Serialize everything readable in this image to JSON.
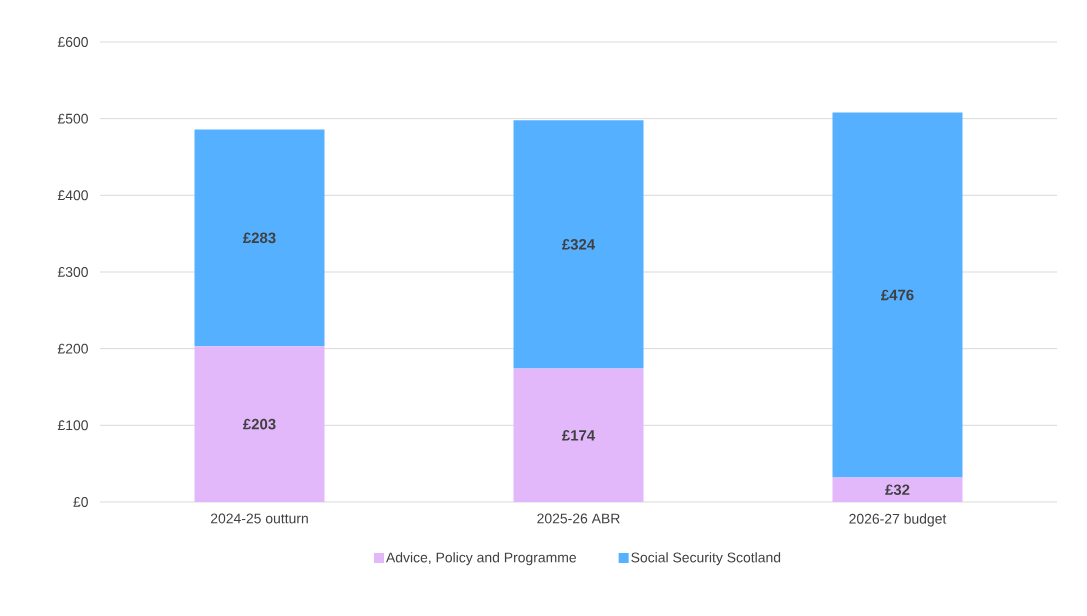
{
  "chart_data": {
    "type": "bar",
    "stacked": true,
    "categories": [
      "2024-25 outturn",
      "2025-26 ABR",
      "2026-27 budget"
    ],
    "series": [
      {
        "name": "Advice, Policy and Programme",
        "color": "#e2b8fb",
        "values": [
          203,
          174,
          32
        ],
        "value_labels": [
          "£203",
          "£174",
          "£32"
        ]
      },
      {
        "name": "Social Security Scotland",
        "color": "#55b0ff",
        "values": [
          283,
          324,
          476
        ],
        "value_labels": [
          "£283",
          "£324",
          "£476"
        ]
      }
    ],
    "ylim": [
      0,
      600
    ],
    "yticks": [
      {
        "value": 0,
        "label": "£0"
      },
      {
        "value": 100,
        "label": "£100"
      },
      {
        "value": 200,
        "label": "£200"
      },
      {
        "value": 300,
        "label": "£300"
      },
      {
        "value": 400,
        "label": "£400"
      },
      {
        "value": 500,
        "label": "£500"
      },
      {
        "value": 600,
        "label": "£600"
      }
    ],
    "grid": "y",
    "legend": "bottom"
  }
}
